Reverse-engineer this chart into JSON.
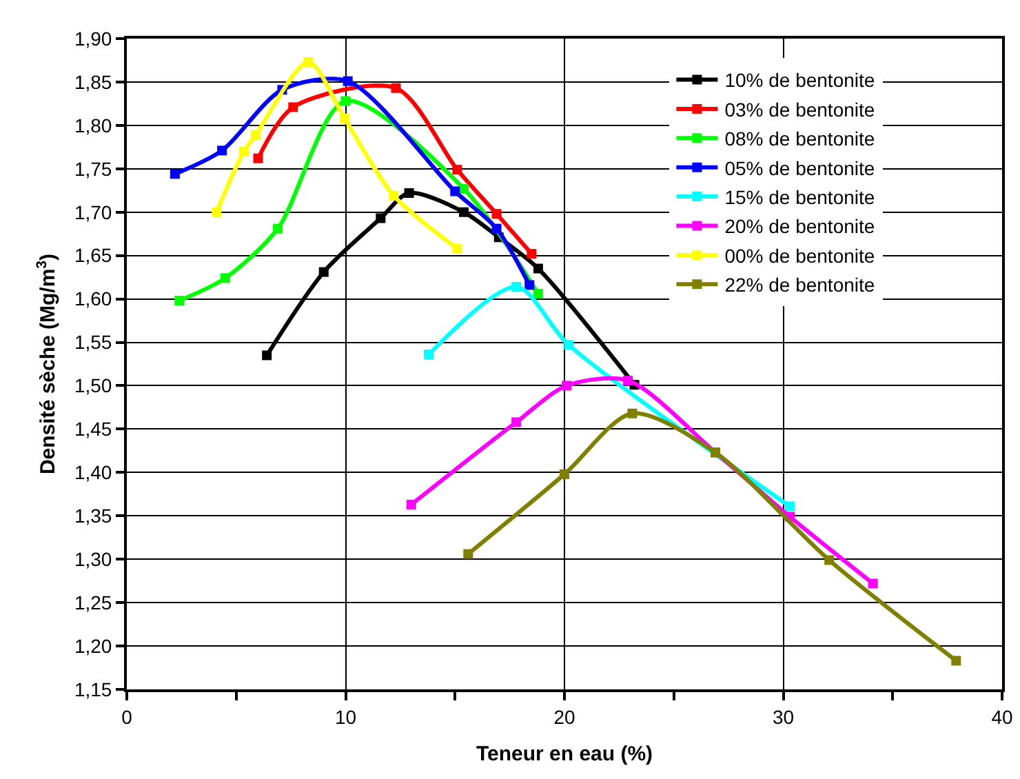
{
  "chart_data": {
    "type": "line",
    "xlabel": "Teneur en eau (%)",
    "ylabel": "Densité sèche (Mg/m$^{3}$)",
    "xlim": [
      0,
      40
    ],
    "xticks": [
      0,
      10,
      20,
      30,
      40
    ],
    "ylim": [
      1.15,
      1.9
    ],
    "yticks": [
      {
        "value": 1.15,
        "label": "1,15"
      },
      {
        "value": 1.2,
        "label": "1,20"
      },
      {
        "value": 1.25,
        "label": "1,25"
      },
      {
        "value": 1.3,
        "label": "1,30"
      },
      {
        "value": 1.35,
        "label": "1,35"
      },
      {
        "value": 1.4,
        "label": "1,40"
      },
      {
        "value": 1.45,
        "label": "1,45"
      },
      {
        "value": 1.5,
        "label": "1,50"
      },
      {
        "value": 1.55,
        "label": "1,55"
      },
      {
        "value": 1.6,
        "label": "1,60"
      },
      {
        "value": 1.65,
        "label": "1,65"
      },
      {
        "value": 1.7,
        "label": "1,70"
      },
      {
        "value": 1.75,
        "label": "1,75"
      },
      {
        "value": 1.8,
        "label": "1,80"
      },
      {
        "value": 1.85,
        "label": "1,85"
      },
      {
        "value": 1.9,
        "label": "1,90"
      }
    ],
    "grid": true,
    "legend": "top right",
    "marker": "square",
    "line_style": "solid",
    "series": [
      {
        "name": "10% de bentonite",
        "color": "#000000",
        "x": [
          6.4,
          9.0,
          11.6,
          12.9,
          15.4,
          17.0,
          18.8,
          23.2
        ],
        "values": [
          1.535,
          1.631,
          1.693,
          1.722,
          1.7,
          1.671,
          1.635,
          1.501
        ]
      },
      {
        "name": "03% de bentonite",
        "color": "#ff0000",
        "x": [
          6.0,
          7.6,
          12.3,
          15.1,
          16.9,
          18.5
        ],
        "values": [
          1.762,
          1.821,
          1.843,
          1.749,
          1.698,
          1.652
        ]
      },
      {
        "name": "08% de bentonite",
        "color": "#00ff00",
        "x": [
          2.4,
          4.5,
          6.9,
          10.0,
          15.4,
          18.8
        ],
        "values": [
          1.598,
          1.624,
          1.681,
          1.828,
          1.727,
          1.606
        ]
      },
      {
        "name": "05% de bentonite",
        "color": "#0000ff",
        "x": [
          2.2,
          4.35,
          7.1,
          10.1,
          15.0,
          16.9,
          18.4
        ],
        "values": [
          1.744,
          1.771,
          1.841,
          1.851,
          1.724,
          1.681,
          1.616
        ]
      },
      {
        "name": "15% de bentonite",
        "color": "#00ffff",
        "x": [
          13.8,
          17.8,
          20.2,
          30.3
        ],
        "values": [
          1.536,
          1.614,
          1.547,
          1.361
        ]
      },
      {
        "name": "20% de bentonite",
        "color": "#ff00ff",
        "x": [
          13.0,
          17.8,
          20.1,
          22.9,
          26.9,
          30.3,
          34.1
        ],
        "values": [
          1.363,
          1.458,
          1.5,
          1.506,
          1.423,
          1.349,
          1.272
        ]
      },
      {
        "name": "00% de bentonite",
        "color": "#ffff00",
        "x": [
          4.1,
          5.35,
          5.9,
          8.3,
          9.95,
          12.2,
          15.1
        ],
        "values": [
          1.7,
          1.77,
          1.789,
          1.873,
          1.808,
          1.719,
          1.658
        ]
      },
      {
        "name": "22% de bentonite",
        "color": "#808000",
        "x": [
          15.6,
          20.0,
          23.1,
          26.9,
          32.1,
          37.9
        ],
        "values": [
          1.306,
          1.398,
          1.468,
          1.423,
          1.299,
          1.183
        ]
      }
    ]
  }
}
